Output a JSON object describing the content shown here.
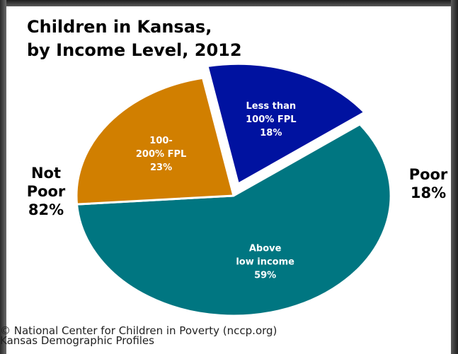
{
  "chart_data": {
    "type": "pie",
    "title_lines": [
      "Children in Kansas,",
      "by Income Level, 2012"
    ],
    "slices": [
      {
        "label_lines": [
          "Above",
          "low income",
          "59%"
        ],
        "value": 59,
        "color": "#007681",
        "exploded": false
      },
      {
        "label_lines": [
          "100-",
          "200% FPL",
          "23%"
        ],
        "value": 23,
        "color": "#d17f00",
        "exploded": false
      },
      {
        "label_lines": [
          "Less than",
          "100% FPL",
          "18%"
        ],
        "value": 18,
        "color": "#0012a0",
        "exploded": true
      }
    ],
    "groups": [
      {
        "lines": [
          "Not",
          "Poor",
          "82%"
        ],
        "value": 82
      },
      {
        "lines": [
          "Poor",
          "18%"
        ],
        "value": 18
      }
    ],
    "credit_lines": [
      "© National Center for Children in Poverty (nccp.org)",
      "Kansas Demographic Profiles"
    ]
  }
}
